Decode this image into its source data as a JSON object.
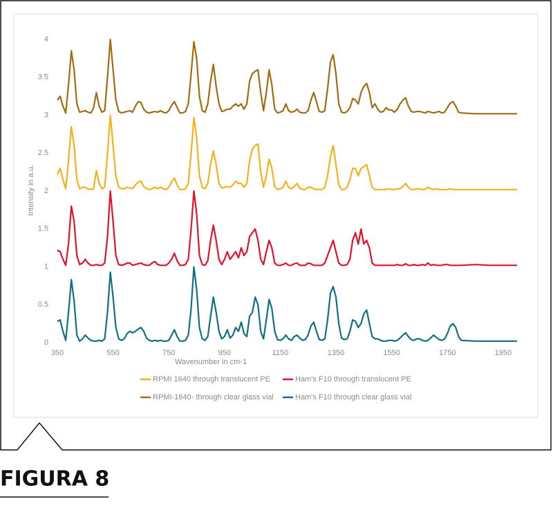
{
  "figure_label": "FIGURA 8",
  "chart_data": {
    "type": "line",
    "x_label": "Wavenumber in cm-1",
    "y_label": "Intensity in a.u.",
    "xlim": [
      350,
      2000
    ],
    "xticks": [
      350,
      550,
      750,
      950,
      1150,
      1350,
      1550,
      1750,
      1950
    ],
    "ylim": [
      0,
      4
    ],
    "yticks": [
      0,
      0.5,
      1,
      1.5,
      2,
      2.5,
      3,
      3.5,
      4
    ],
    "grid": false,
    "x": [
      350,
      360,
      370,
      380,
      390,
      400,
      410,
      420,
      430,
      440,
      450,
      460,
      470,
      480,
      490,
      500,
      510,
      520,
      530,
      540,
      550,
      560,
      570,
      580,
      590,
      600,
      610,
      620,
      630,
      640,
      650,
      660,
      670,
      680,
      690,
      700,
      710,
      720,
      730,
      740,
      750,
      760,
      770,
      780,
      790,
      800,
      810,
      820,
      830,
      840,
      850,
      860,
      870,
      880,
      890,
      900,
      910,
      920,
      930,
      940,
      950,
      960,
      970,
      980,
      990,
      1000,
      1010,
      1020,
      1030,
      1040,
      1050,
      1060,
      1070,
      1080,
      1090,
      1100,
      1110,
      1120,
      1130,
      1140,
      1150,
      1160,
      1170,
      1180,
      1190,
      1200,
      1210,
      1220,
      1230,
      1240,
      1250,
      1260,
      1270,
      1280,
      1290,
      1300,
      1310,
      1320,
      1330,
      1340,
      1350,
      1360,
      1370,
      1380,
      1390,
      1400,
      1410,
      1420,
      1430,
      1440,
      1450,
      1460,
      1470,
      1480,
      1490,
      1500,
      1510,
      1520,
      1530,
      1540,
      1550,
      1560,
      1570,
      1580,
      1590,
      1600,
      1610,
      1620,
      1630,
      1640,
      1650,
      1660,
      1670,
      1680,
      1690,
      1700,
      1710,
      1720,
      1730,
      1740,
      1750,
      1760,
      1770,
      1780,
      1790,
      1800,
      1850,
      1900,
      1950,
      2000
    ],
    "series": [
      {
        "name": "RPMI 1640 through translucent PE",
        "color": "#f5b01a",
        "values": [
          2.22,
          2.3,
          2.15,
          2.03,
          2.4,
          2.85,
          2.6,
          2.15,
          2.03,
          2.05,
          2.05,
          2.03,
          2.02,
          2.03,
          2.27,
          2.1,
          2.03,
          2.05,
          2.5,
          3.0,
          2.6,
          2.2,
          2.05,
          2.03,
          2.03,
          2.05,
          2.04,
          2.03,
          2.08,
          2.12,
          2.13,
          2.06,
          2.03,
          2.02,
          2.03,
          2.05,
          2.03,
          2.05,
          2.03,
          2.02,
          2.05,
          2.12,
          2.17,
          2.08,
          2.02,
          2.02,
          2.03,
          2.1,
          2.5,
          2.97,
          2.7,
          2.2,
          2.05,
          2.03,
          2.1,
          2.35,
          2.53,
          2.35,
          2.1,
          2.04,
          2.05,
          2.06,
          2.05,
          2.08,
          2.13,
          2.1,
          2.1,
          2.05,
          2.1,
          2.4,
          2.55,
          2.6,
          2.62,
          2.25,
          2.05,
          2.2,
          2.42,
          2.3,
          2.06,
          2.02,
          2.03,
          2.05,
          2.13,
          2.05,
          2.03,
          2.06,
          2.1,
          2.04,
          2.02,
          2.02,
          2.05,
          2.05,
          2.03,
          2.02,
          2.02,
          2.02,
          2.05,
          2.2,
          2.45,
          2.6,
          2.35,
          2.08,
          2.02,
          2.02,
          2.05,
          2.15,
          2.3,
          2.3,
          2.2,
          2.3,
          2.32,
          2.35,
          2.2,
          2.05,
          2.02,
          2.02,
          2.02,
          2.02,
          2.02,
          2.03,
          2.02,
          2.02,
          2.03,
          2.03,
          2.06,
          2.1,
          2.05,
          2.02,
          2.02,
          2.03,
          2.03,
          2.02,
          2.02,
          2.05,
          2.03,
          2.02,
          2.03,
          2.02,
          2.02,
          2.02,
          2.02,
          2.03,
          2.02,
          2.02,
          2.02,
          2.02,
          2.02,
          2.02,
          2.02,
          2.02
        ]
      },
      {
        "name": "Ham's F10 through translucent PE",
        "color": "#e2102a",
        "values": [
          1.22,
          1.2,
          1.1,
          1.02,
          1.3,
          1.8,
          1.6,
          1.15,
          1.03,
          1.05,
          1.1,
          1.05,
          1.02,
          1.02,
          1.03,
          1.02,
          1.02,
          1.05,
          1.4,
          2.0,
          1.6,
          1.15,
          1.03,
          1.02,
          1.03,
          1.05,
          1.05,
          1.02,
          1.03,
          1.04,
          1.05,
          1.03,
          1.02,
          1.02,
          1.05,
          1.07,
          1.03,
          1.02,
          1.02,
          1.02,
          1.05,
          1.1,
          1.18,
          1.08,
          1.02,
          1.02,
          1.03,
          1.1,
          1.5,
          2.0,
          1.7,
          1.15,
          1.03,
          1.02,
          1.08,
          1.35,
          1.55,
          1.35,
          1.1,
          1.03,
          1.1,
          1.2,
          1.1,
          1.15,
          1.2,
          1.12,
          1.25,
          1.15,
          1.2,
          1.4,
          1.45,
          1.5,
          1.35,
          1.1,
          1.03,
          1.2,
          1.35,
          1.25,
          1.05,
          1.02,
          1.02,
          1.03,
          1.05,
          1.02,
          1.02,
          1.04,
          1.05,
          1.02,
          1.02,
          1.02,
          1.05,
          1.04,
          1.02,
          1.02,
          1.02,
          1.02,
          1.05,
          1.15,
          1.25,
          1.35,
          1.2,
          1.05,
          1.02,
          1.02,
          1.03,
          1.1,
          1.35,
          1.45,
          1.3,
          1.5,
          1.3,
          1.35,
          1.25,
          1.05,
          1.02,
          1.02,
          1.02,
          1.02,
          1.02,
          1.02,
          1.02,
          1.02,
          1.03,
          1.02,
          1.02,
          1.04,
          1.02,
          1.02,
          1.03,
          1.02,
          1.02,
          1.03,
          1.02,
          1.05,
          1.02,
          1.03,
          1.02,
          1.02,
          1.02,
          1.03,
          1.03,
          1.02,
          1.02,
          1.02,
          1.02,
          1.02,
          1.03,
          1.02,
          1.02,
          1.02
        ]
      },
      {
        "name": "RPMI-1640- through clear glass vial",
        "color": "#a06c0f",
        "values": [
          3.2,
          3.25,
          3.12,
          3.03,
          3.4,
          3.85,
          3.6,
          3.15,
          3.04,
          3.05,
          3.06,
          3.04,
          3.03,
          3.1,
          3.3,
          3.12,
          3.04,
          3.06,
          3.5,
          4.0,
          3.6,
          3.2,
          3.05,
          3.03,
          3.04,
          3.05,
          3.06,
          3.04,
          3.12,
          3.18,
          3.17,
          3.08,
          3.04,
          3.03,
          3.04,
          3.05,
          3.04,
          3.06,
          3.04,
          3.03,
          3.06,
          3.13,
          3.18,
          3.1,
          3.03,
          3.03,
          3.05,
          3.15,
          3.55,
          3.97,
          3.75,
          3.25,
          3.06,
          3.04,
          3.15,
          3.45,
          3.67,
          3.38,
          3.15,
          3.05,
          3.06,
          3.08,
          3.08,
          3.12,
          3.15,
          3.12,
          3.15,
          3.08,
          3.15,
          3.45,
          3.55,
          3.58,
          3.6,
          3.3,
          3.06,
          3.3,
          3.6,
          3.4,
          3.08,
          3.03,
          3.04,
          3.06,
          3.15,
          3.06,
          3.04,
          3.05,
          3.08,
          3.04,
          3.03,
          3.03,
          3.06,
          3.2,
          3.3,
          3.18,
          3.05,
          3.04,
          3.06,
          3.35,
          3.7,
          3.8,
          3.55,
          3.15,
          3.04,
          3.03,
          3.05,
          3.1,
          3.22,
          3.2,
          3.15,
          3.3,
          3.38,
          3.42,
          3.3,
          3.1,
          3.15,
          3.08,
          3.04,
          3.05,
          3.1,
          3.07,
          3.07,
          3.04,
          3.08,
          3.15,
          3.2,
          3.23,
          3.12,
          3.05,
          3.04,
          3.05,
          3.05,
          3.04,
          3.03,
          3.05,
          3.04,
          3.03,
          3.04,
          3.05,
          3.03,
          3.04,
          3.1,
          3.16,
          3.18,
          3.12,
          3.04,
          3.03,
          3.02,
          3.02,
          3.02,
          3.02
        ]
      },
      {
        "name": "Ham's F10 through clear glass vial",
        "color": "#0e6e85",
        "values": [
          0.28,
          0.3,
          0.15,
          0.03,
          0.4,
          0.83,
          0.55,
          0.1,
          0.02,
          0.05,
          0.1,
          0.06,
          0.03,
          0.02,
          0.02,
          0.03,
          0.02,
          0.05,
          0.4,
          0.93,
          0.6,
          0.2,
          0.05,
          0.03,
          0.05,
          0.12,
          0.15,
          0.13,
          0.15,
          0.18,
          0.2,
          0.15,
          0.06,
          0.03,
          0.02,
          0.03,
          0.02,
          0.03,
          0.02,
          0.02,
          0.03,
          0.1,
          0.17,
          0.08,
          0.02,
          0.02,
          0.03,
          0.1,
          0.45,
          1.0,
          0.7,
          0.2,
          0.05,
          0.03,
          0.08,
          0.35,
          0.6,
          0.4,
          0.15,
          0.05,
          0.08,
          0.17,
          0.06,
          0.1,
          0.2,
          0.15,
          0.27,
          0.12,
          0.08,
          0.35,
          0.4,
          0.6,
          0.5,
          0.15,
          0.05,
          0.3,
          0.57,
          0.45,
          0.15,
          0.04,
          0.03,
          0.05,
          0.1,
          0.05,
          0.03,
          0.08,
          0.1,
          0.06,
          0.03,
          0.04,
          0.1,
          0.22,
          0.27,
          0.15,
          0.04,
          0.03,
          0.05,
          0.3,
          0.65,
          0.74,
          0.6,
          0.25,
          0.06,
          0.04,
          0.05,
          0.15,
          0.3,
          0.28,
          0.2,
          0.25,
          0.38,
          0.43,
          0.25,
          0.08,
          0.05,
          0.05,
          0.03,
          0.02,
          0.02,
          0.03,
          0.03,
          0.02,
          0.03,
          0.06,
          0.1,
          0.13,
          0.08,
          0.04,
          0.03,
          0.05,
          0.05,
          0.03,
          0.02,
          0.03,
          0.06,
          0.1,
          0.07,
          0.04,
          0.03,
          0.05,
          0.12,
          0.22,
          0.25,
          0.2,
          0.08,
          0.03,
          0.02,
          0.02,
          0.02,
          0.02
        ]
      }
    ]
  }
}
